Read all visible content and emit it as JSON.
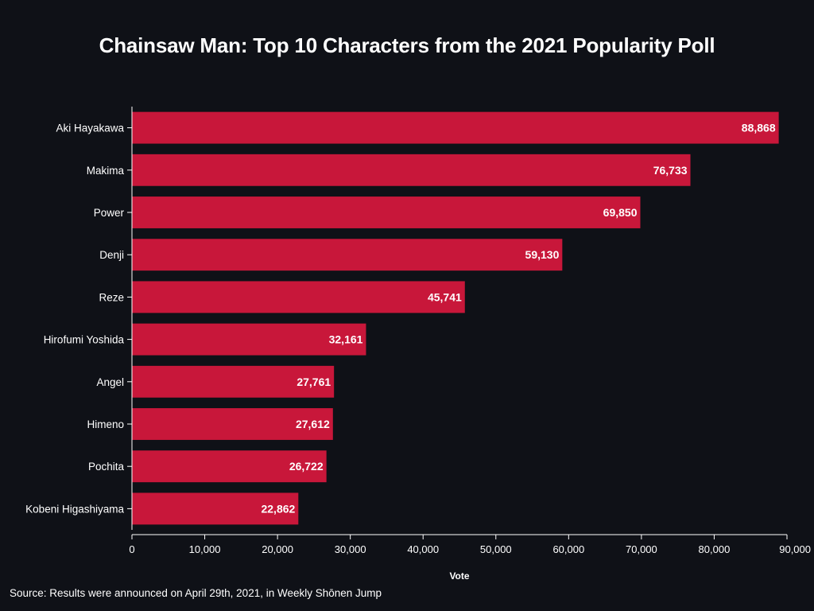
{
  "chart_data": {
    "type": "bar",
    "orientation": "horizontal",
    "title": "Chainsaw Man: Top 10 Characters from the 2021 Popularity Poll",
    "xlabel": "Vote",
    "ylabel": "",
    "categories": [
      "Aki Hayakawa",
      "Makima",
      "Power",
      "Denji",
      "Reze",
      "Hirofumi Yoshida",
      "Angel",
      "Himeno",
      "Pochita",
      "Kobeni Higashiyama"
    ],
    "values": [
      88868,
      76733,
      69850,
      59130,
      45741,
      32161,
      27761,
      27612,
      26722,
      22862
    ],
    "value_labels": [
      "88,868",
      "76,733",
      "69,850",
      "59,130",
      "45,741",
      "32,161",
      "27,761",
      "27,612",
      "26,722",
      "22,862"
    ],
    "xlim": [
      0,
      90000
    ],
    "xticks": [
      0,
      10000,
      20000,
      30000,
      40000,
      50000,
      60000,
      70000,
      80000,
      90000
    ],
    "xtick_labels": [
      "0",
      "10,000",
      "20,000",
      "30,000",
      "40,000",
      "50,000",
      "60,000",
      "70,000",
      "80,000",
      "90,000"
    ],
    "bar_color": "#c8173a",
    "background": "#0f1117",
    "grid": false,
    "source": "Source: Results were announced on April 29th, 2021, in Weekly Shōnen Jump"
  }
}
